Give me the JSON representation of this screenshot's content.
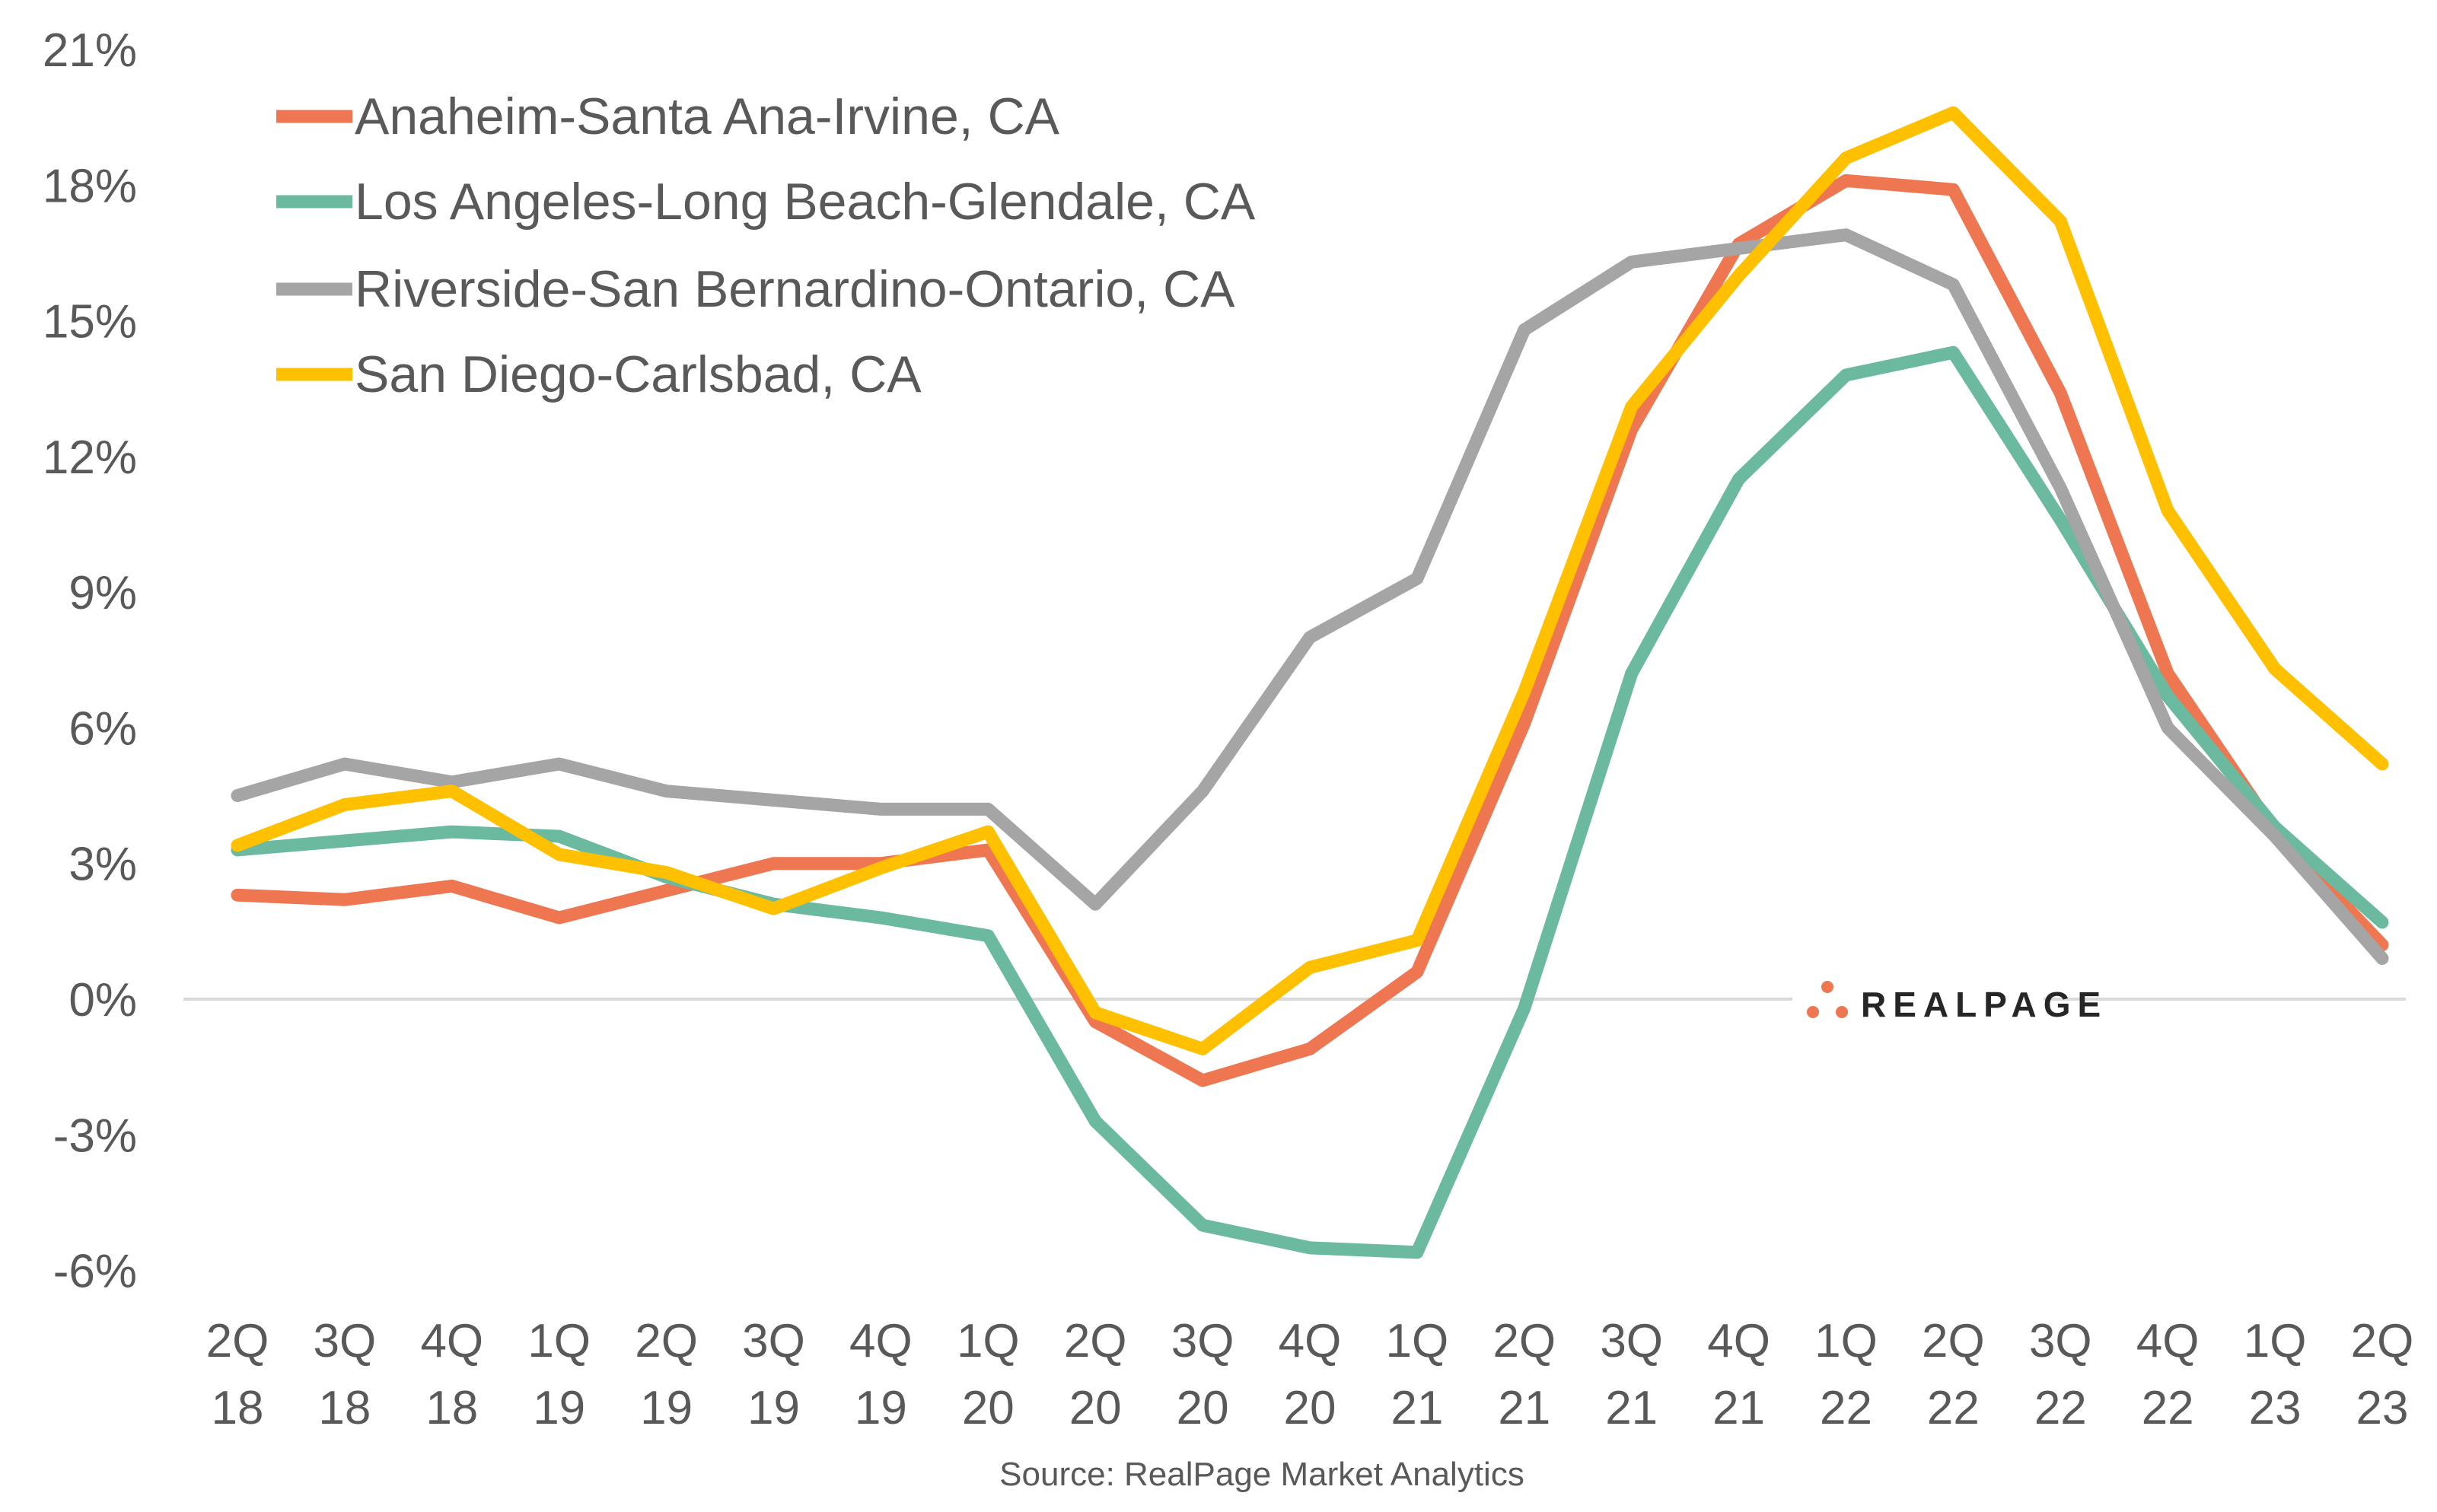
{
  "chart_data": {
    "type": "line",
    "title": "",
    "xlabel": "",
    "ylabel": "",
    "ylim": [
      -6,
      21
    ],
    "yticks": [
      -6,
      -3,
      0,
      3,
      6,
      9,
      12,
      15,
      18,
      21
    ],
    "ytick_format": "%",
    "grid": false,
    "legend_position": "top-left",
    "categories": [
      "2Q 18",
      "3Q 18",
      "4Q 18",
      "1Q 19",
      "2Q 19",
      "3Q 19",
      "4Q 19",
      "1Q 20",
      "2Q 20",
      "3Q 20",
      "4Q 20",
      "1Q 21",
      "2Q 21",
      "3Q 21",
      "4Q 21",
      "1Q 22",
      "2Q 22",
      "3Q 22",
      "4Q 22",
      "1Q 23",
      "2Q 23"
    ],
    "series": [
      {
        "name": "Anaheim-Santa Ana-Irvine, CA",
        "color": "#EE7752",
        "values": [
          2.3,
          2.2,
          2.5,
          1.8,
          2.4,
          3.0,
          3.0,
          3.3,
          -0.5,
          -1.8,
          -1.1,
          0.6,
          6.1,
          12.6,
          16.7,
          18.1,
          17.9,
          13.4,
          7.2,
          3.7,
          1.2
        ]
      },
      {
        "name": "Los Angeles-Long Beach-Glendale, CA",
        "color": "#6BB99F",
        "values": [
          3.3,
          3.5,
          3.7,
          3.6,
          2.7,
          2.1,
          1.8,
          1.4,
          -2.7,
          -5.0,
          -5.5,
          -5.6,
          -0.2,
          7.2,
          11.5,
          13.8,
          14.3,
          10.6,
          6.7,
          3.8,
          1.7
        ]
      },
      {
        "name": "Riverside-San Bernardino-Ontario, CA",
        "color": "#A5A5A5",
        "values": [
          4.5,
          5.2,
          4.8,
          5.2,
          4.6,
          4.4,
          4.2,
          4.2,
          2.1,
          4.6,
          8.0,
          9.3,
          14.8,
          16.3,
          16.6,
          16.9,
          15.8,
          11.3,
          6.0,
          3.6,
          0.9
        ]
      },
      {
        "name": "San Diego-Carlsbad, CA",
        "color": "#FFC000",
        "values": [
          3.4,
          4.3,
          4.6,
          3.2,
          2.8,
          2.0,
          2.9,
          3.7,
          -0.3,
          -1.1,
          0.7,
          1.3,
          6.8,
          13.1,
          16.0,
          18.6,
          19.6,
          17.2,
          10.8,
          7.3,
          5.2
        ]
      }
    ],
    "source": "Source: RealPage Market Analytics"
  },
  "logo": {
    "text": "REALPAGE",
    "color": "#EE7752"
  }
}
